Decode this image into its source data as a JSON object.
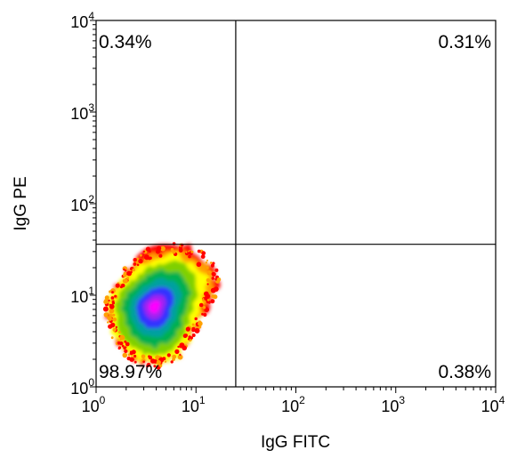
{
  "chart_data": {
    "type": "scatter",
    "subtype": "flow-cytometry-density-quadrant",
    "xlabel": "IgG FITC",
    "ylabel": "IgG PE",
    "x_scale": "log",
    "y_scale": "log",
    "xlim": [
      1,
      10000
    ],
    "ylim": [
      1,
      10000
    ],
    "x_ticks": [
      {
        "base": "10",
        "exp": "0"
      },
      {
        "base": "10",
        "exp": "1"
      },
      {
        "base": "10",
        "exp": "2"
      },
      {
        "base": "10",
        "exp": "3"
      },
      {
        "base": "10",
        "exp": "4"
      }
    ],
    "y_ticks": [
      {
        "base": "10",
        "exp": "0"
      },
      {
        "base": "10",
        "exp": "1"
      },
      {
        "base": "10",
        "exp": "2"
      },
      {
        "base": "10",
        "exp": "3"
      },
      {
        "base": "10",
        "exp": "4"
      }
    ],
    "quadrant_gates": {
      "x": 25,
      "y": 36
    },
    "quadrants": [
      {
        "position": "upper-left",
        "label": "0.34%",
        "percent": 0.34
      },
      {
        "position": "upper-right",
        "label": "0.31%",
        "percent": 0.31
      },
      {
        "position": "lower-left",
        "label": "98.97%",
        "percent": 98.97
      },
      {
        "position": "lower-right",
        "label": "0.38%",
        "percent": 0.38
      }
    ],
    "population": {
      "center": [
        3.8,
        7.5
      ],
      "x_range": [
        1,
        24
      ],
      "y_range": [
        1,
        38
      ]
    },
    "density_colors": [
      "#ff0000",
      "#ffa000",
      "#ffff00",
      "#7fd000",
      "#00b050",
      "#00a0a0",
      "#3030ff",
      "#a020f0",
      "#ff00ff"
    ],
    "grid": false,
    "legend": "none"
  }
}
